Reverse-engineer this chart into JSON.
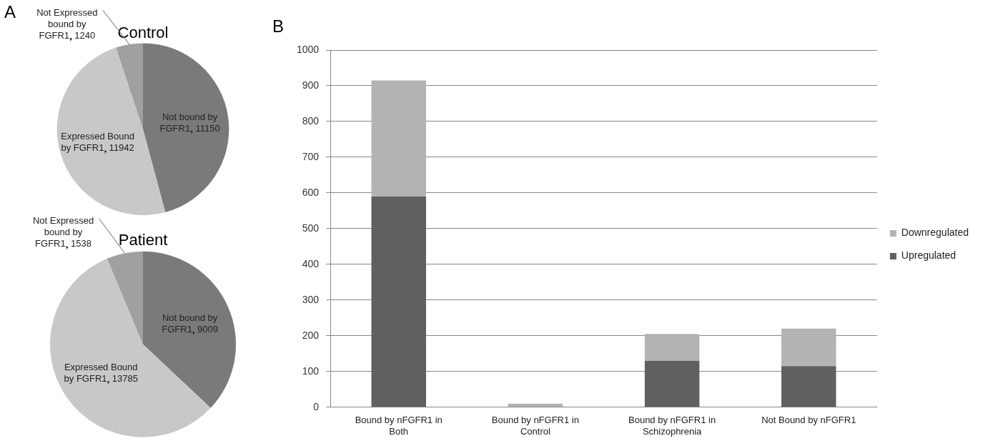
{
  "chart_data": [
    {
      "type": "pie",
      "title": "Control",
      "annotations": [
        "A"
      ],
      "categories": [
        "Not bound by FGFR1",
        "Expressed Bound by FGFR1",
        "Not Expressed bound by FGFR1"
      ],
      "values": [
        11150,
        11942,
        1240
      ],
      "colors": [
        "#7a7a7a",
        "#c8c8c8",
        "#a0a0a0"
      ],
      "data_labels": true,
      "legend": false
    },
    {
      "type": "pie",
      "title": "Patient",
      "categories": [
        "Not bound by FGFR1",
        "Expressed Bound by FGFR1",
        "Not Expressed bound by FGFR1"
      ],
      "values": [
        9009,
        13785,
        1538
      ],
      "colors": [
        "#7a7a7a",
        "#c8c8c8",
        "#a0a0a0"
      ],
      "data_labels": true,
      "legend": false
    },
    {
      "type": "bar",
      "stacked": true,
      "annotations": [
        "B"
      ],
      "categories": [
        "Bound by nFGFR1 in Both",
        "Bound by nFGFR1 in Control",
        "Bound by nFGFR1 in Schizophrenia",
        "Not Bound by nFGFR1"
      ],
      "series": [
        {
          "name": "Upregulated",
          "color": "#606060",
          "values": [
            590,
            0,
            130,
            115
          ]
        },
        {
          "name": "Downregulated",
          "color": "#b3b3b3",
          "values": [
            325,
            10,
            75,
            105
          ]
        }
      ],
      "ylim": [
        0,
        1000
      ],
      "yticks": [
        0,
        100,
        200,
        300,
        400,
        500,
        600,
        700,
        800,
        900,
        1000
      ],
      "grid": "y",
      "legend": "right"
    }
  ]
}
